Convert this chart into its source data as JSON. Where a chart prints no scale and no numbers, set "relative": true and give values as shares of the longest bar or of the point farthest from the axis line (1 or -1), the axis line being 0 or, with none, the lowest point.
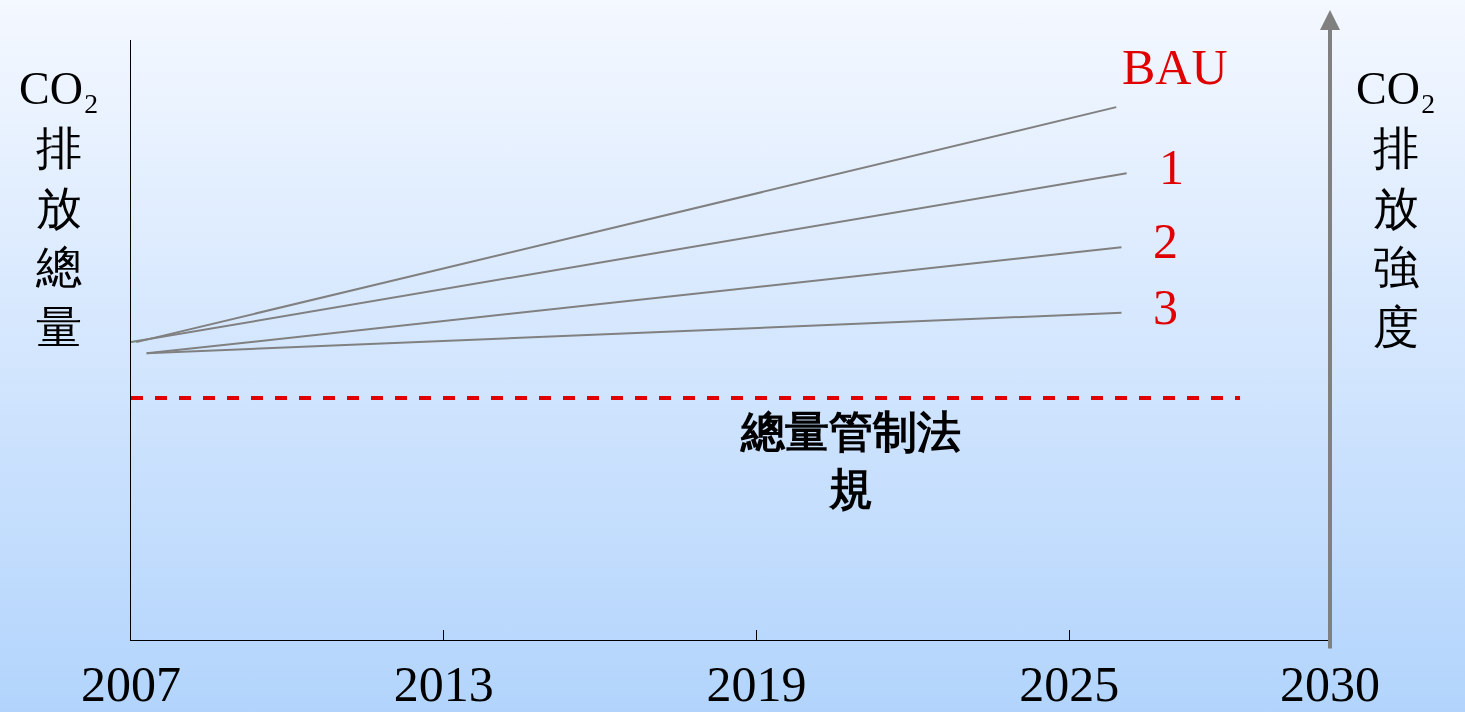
{
  "chart_data": {
    "type": "line",
    "relative": true,
    "ylabel": "CO₂ 排放總量",
    "y2label": "CO₂ 排放強度",
    "xlim": [
      2007,
      2030
    ],
    "xticks": [
      2007,
      2013,
      2019,
      2025,
      2030
    ],
    "series": [
      {
        "name": "BAU",
        "color": "#808080",
        "x": [
          2007.1,
          2025.9
        ],
        "values": [
          0.559,
          1
        ]
      },
      {
        "name": "1",
        "color": "#808080",
        "x": [
          2007.0,
          2026.1
        ],
        "values": [
          0.559,
          0.876
        ]
      },
      {
        "name": "2",
        "color": "#808080",
        "x": [
          2007.3,
          2026.0
        ],
        "values": [
          0.538,
          0.737
        ]
      },
      {
        "name": "3",
        "color": "#808080",
        "x": [
          2007.3,
          2026.0
        ],
        "values": [
          0.538,
          0.614
        ]
      }
    ],
    "ref_lines": [
      {
        "axis": "y",
        "value": 0.454,
        "label": "總量管制法規",
        "color": "#e00000",
        "line_style": "dashed"
      }
    ],
    "grid": false,
    "legend": false,
    "marker": "none",
    "line_style": "solid"
  }
}
